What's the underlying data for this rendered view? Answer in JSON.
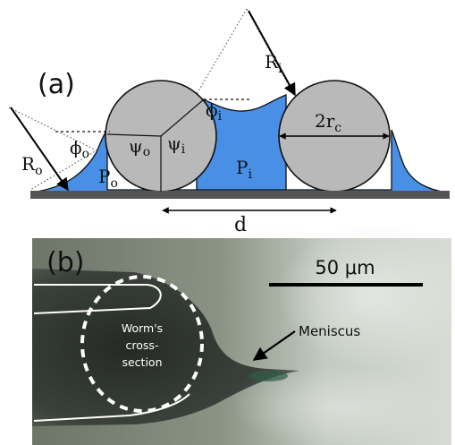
{
  "panel_a": {
    "panel_label": "(a)",
    "labels": {
      "R_o": "R",
      "R_o_sub": "o",
      "R_i": "R",
      "R_i_sub": "i",
      "phi_o": "ϕ",
      "phi_o_sub": "o",
      "phi_i": "ϕ",
      "phi_i_sub": "i",
      "psi_o": "ψ",
      "psi_o_sub": "o",
      "psi_i": "ψ",
      "psi_i_sub": "i",
      "P_o": "P",
      "P_o_sub": "o",
      "P_i": "P",
      "P_i_sub": "i",
      "two_r_c": "2r",
      "two_r_c_sub": "c",
      "d": "d"
    },
    "colors": {
      "liquid": "#4a8fe6",
      "cylinder_fill": "#b9b9b9",
      "substrate": "#555555",
      "outline": "#111111"
    }
  },
  "panel_b": {
    "panel_label": "(b)",
    "scale_bar_label": "50 μm",
    "worm_label_line1": "Worm's",
    "worm_label_line2": "cross-",
    "worm_label_line3": "section",
    "meniscus_label": "Meniscus"
  }
}
